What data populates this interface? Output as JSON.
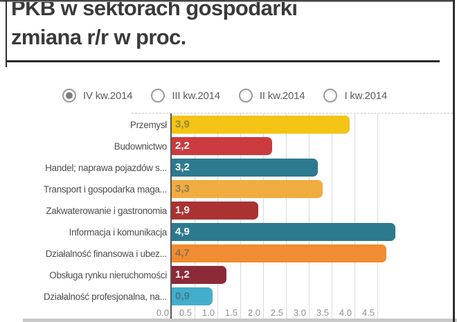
{
  "header": {
    "title_line1": "PKB w sektorach gospodarki",
    "title_line2": "zmiana r/r w proc."
  },
  "legend": {
    "options": [
      {
        "label": "IV kw.2014",
        "selected": true
      },
      {
        "label": "III kw.2014",
        "selected": false
      },
      {
        "label": "II kw.2014",
        "selected": false
      },
      {
        "label": "I kw.2014",
        "selected": false
      }
    ]
  },
  "chart_data": {
    "type": "bar",
    "orientation": "horizontal",
    "title": "PKB w sektorach gospodarki zmiana r/r w proc.",
    "xlabel": "",
    "ylabel": "",
    "xlim": [
      0,
      5
    ],
    "xticks": [
      "0.0",
      "0.5",
      "1.0",
      "1.5",
      "2.0",
      "2.5",
      "3.0",
      "3.5",
      "4.0",
      "4.5"
    ],
    "grid": "vertical",
    "legend_position": "top",
    "categories": [
      "Przemysł",
      "Budownictwo",
      "Handel; naprawa pojazdów s...",
      "Transport i gospodarka maga...",
      "Zakwaterowanie i gastronomia",
      "Informacja i komunikacja",
      "Działalność finansowa i ubez...",
      "Obsługa rynku nieruchomości",
      "Działalność profesjonalna, na..."
    ],
    "values": [
      3.9,
      2.2,
      3.2,
      3.3,
      1.9,
      4.9,
      4.7,
      1.2,
      0.9
    ],
    "value_labels": [
      "3,9",
      "2,2",
      "3,2",
      "3,3",
      "1,9",
      "4,9",
      "4,7",
      "1,2",
      "0,9"
    ],
    "bar_colors": [
      "#F3C413",
      "#CC3B3E",
      "#2C7A8F",
      "#F0AC40",
      "#AC3232",
      "#2C7A8F",
      "#F08C32",
      "#8C2A38",
      "#42AECC"
    ],
    "value_label_colors": [
      "rgba(96,96,96,0.62)",
      "#FFFFFF",
      "#FFFFFF",
      "rgba(96,96,96,0.62)",
      "#FFFFFF",
      "#FFFFFF",
      "rgba(96,96,96,0.62)",
      "#FFFFFF",
      "rgba(70,90,100,0.62)"
    ]
  }
}
